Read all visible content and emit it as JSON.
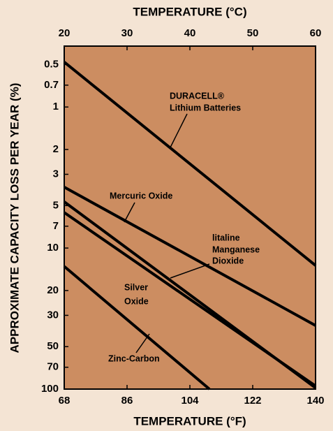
{
  "chart_data": {
    "type": "line",
    "xlabel": "TEMPERATURE (°F)",
    "x2label": "TEMPERATURE (°C)",
    "ylabel": "APPROXIMATE CAPACITY LOSS PER YEAR (%)",
    "xlim": [
      68,
      140
    ],
    "xticks": [
      68,
      86,
      104,
      122,
      140
    ],
    "x2lim": [
      20,
      60
    ],
    "x2ticks": [
      20,
      30,
      40,
      50,
      60
    ],
    "ylim": [
      0.37,
      100
    ],
    "ylog": true,
    "yinverted": true,
    "yticks": [
      0.5,
      0.7,
      1,
      2,
      3,
      5,
      7,
      10,
      20,
      30,
      50,
      70,
      100
    ],
    "plot_color": "#cc8d61",
    "line_color": "#000000",
    "series": [
      {
        "x": [
          68,
          140
        ],
        "values": [
          0.48,
          13.3
        ]
      },
      {
        "x": [
          68,
          140
        ],
        "values": [
          3.7,
          35.4
        ]
      },
      {
        "x": [
          68,
          140
        ],
        "values": [
          4.7,
          98
        ]
      },
      {
        "x": [
          68,
          140
        ],
        "values": [
          5.6,
          95
        ]
      },
      {
        "x": [
          68,
          109.6
        ],
        "values": [
          13.5,
          100
        ]
      }
    ],
    "annotations": [
      "DURACELL®",
      "Lithium Batteries",
      "Mercuric Oxide",
      "litaline",
      "Manganese",
      "Dioxide",
      "Silver",
      "Oxide",
      "Zinc-Carbon"
    ]
  }
}
